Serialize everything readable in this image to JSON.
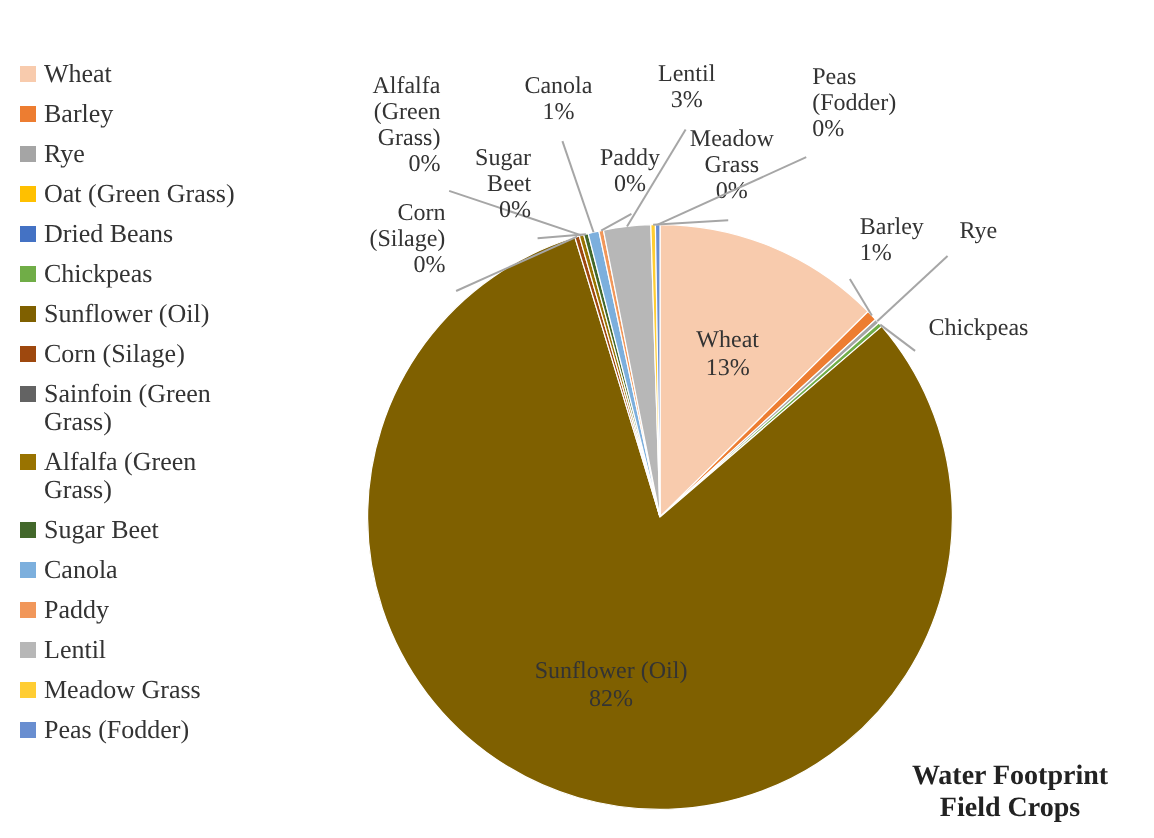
{
  "chart_data": {
    "type": "pie",
    "title": "Water Footprint Field Crops",
    "categories": [
      "Wheat",
      "Barley",
      "Rye",
      "Oat (Green Grass)",
      "Dried Beans",
      "Chickpeas",
      "Sunflower (Oil)",
      "Corn (Silage)",
      "Sainfoin (Green Grass)",
      "Alfalfa (Green Grass)",
      "Sugar Beet",
      "Canola",
      "Paddy",
      "Lentil",
      "Meadow Grass",
      "Peas (Fodder)"
    ],
    "values": [
      12.6,
      0.6,
      0.25,
      0,
      0,
      0.25,
      81.6,
      0.25,
      0,
      0.25,
      0.25,
      0.6,
      0.25,
      2.6,
      0.25,
      0.25
    ],
    "colors": [
      "#f8cbad",
      "#ed7d31",
      "#a5a5a5",
      "#ffc000",
      "#4472c4",
      "#70ad47",
      "#7f6000",
      "#9e480e",
      "#636363",
      "#997300",
      "#43682b",
      "#7cafdd",
      "#f1975a",
      "#b7b7b7",
      "#ffcd33",
      "#698ed0"
    ],
    "value_labels": [
      "13%",
      "1%",
      null,
      null,
      null,
      null,
      "82%",
      "0%",
      null,
      "0%",
      "0%",
      "1%",
      "0%",
      "3%",
      "0%",
      "0%"
    ],
    "legend": "left"
  }
}
